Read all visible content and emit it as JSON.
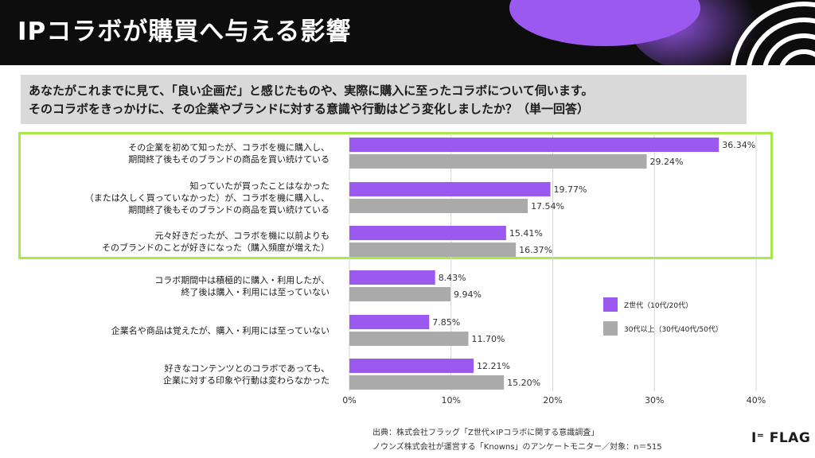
{
  "title": "IPコラボが購買へ与える影響",
  "question": {
    "line1": "あなたがこれまでに見て、「良い企画だ」と感じたものや、実際に購入に至ったコラボについて伺います。",
    "line2": "そのコラボをきっかけに、その企業やブランドに対する意識や行動はどう変化しましたか？（単一回答）"
  },
  "colors": {
    "series1": "#9b59f0",
    "series2": "#aaaaaa",
    "highlight": "#a8e84b",
    "header": "#0d0d0d"
  },
  "chart_data": {
    "type": "bar",
    "orientation": "horizontal",
    "categories": [
      [
        "その企業を初めて知ったが、コラボを機に購入し、",
        "期間終了後もそのブランドの商品を買い続けている"
      ],
      [
        "知っていたが買ったことはなかった",
        "（または久しく買っていなかった）が、コラボを機に購入し、",
        "期間終了後もそのブランドの商品を買い続けている"
      ],
      [
        "元々好きだったが、コラボを機に以前よりも",
        "そのブランドのことが好きになった（購入頻度が増えた）"
      ],
      [
        "コラボ期間中は積極的に購入・利用したが、",
        "終了後は購入・利用には至っていない"
      ],
      [
        "企業名や商品は覚えたが、購入・利用には至っていない"
      ],
      [
        "好きなコンテンツとのコラボであっても、",
        "企業に対する印象や行動は変わらなかった"
      ]
    ],
    "series": [
      {
        "name": "Z世代（10代/20代）",
        "values": [
          36.34,
          19.77,
          15.41,
          8.43,
          7.85,
          12.21
        ],
        "labels": [
          "36.34%",
          "19.77%",
          "15.41%",
          "8.43%",
          "7.85%",
          "12.21%"
        ]
      },
      {
        "name": "30代以上（30代/40代/50代）",
        "values": [
          29.24,
          17.54,
          16.37,
          9.94,
          11.7,
          15.2
        ],
        "labels": [
          "29.24%",
          "17.54%",
          "16.37%",
          "9.94%",
          "11.70%",
          "15.20%"
        ]
      }
    ],
    "xlim": [
      0,
      40
    ],
    "xticks": [
      0,
      10,
      20,
      30,
      40
    ],
    "xtick_labels": [
      "0%",
      "10%",
      "20%",
      "30%",
      "40%"
    ],
    "legend_position": "right"
  },
  "source": {
    "line1": "出典：株式会社フラッグ「Z世代×IPコラボに関する意識調査」",
    "line2": "ノウンズ株式会社が運営する「Knowns」のアンケートモニター／対象：n＝515"
  },
  "logo": "FLAG"
}
